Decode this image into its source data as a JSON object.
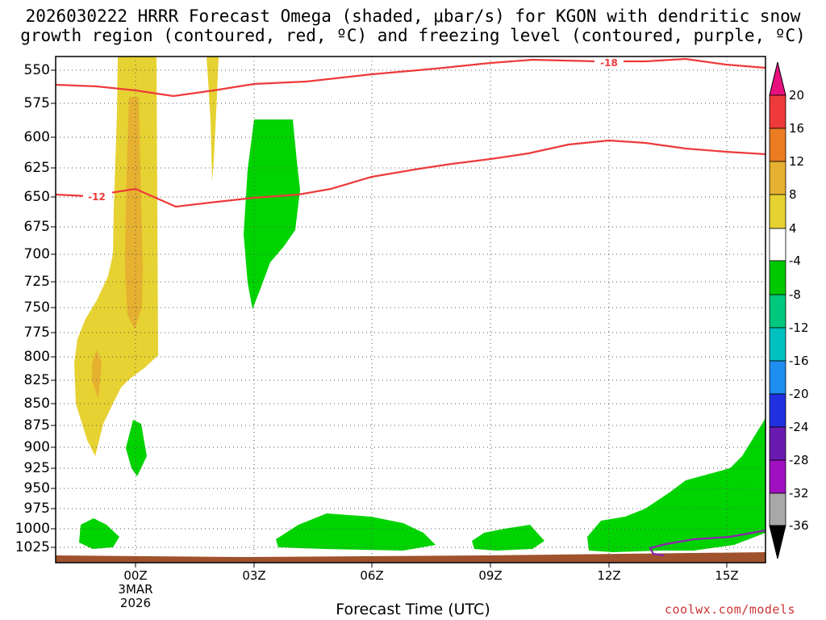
{
  "title_line1": "2026030222 HRRR Forecast Omega (shaded, μbar/s) for KGON with dendritic snow",
  "title_line2": "growth region (contoured, red, ºC) and freezing level (contoured, purple, ºC)",
  "x_axis_label": "Forecast Time (UTC)",
  "credit": "coolwx.com/models",
  "chart_data": {
    "type": "contour",
    "y_axis_levels_mb": [
      "550",
      "575",
      "600",
      "625",
      "650",
      "675",
      "700",
      "725",
      "750",
      "775",
      "800",
      "825",
      "850",
      "875",
      "900",
      "925",
      "950",
      "975",
      "1000",
      "1025"
    ],
    "x_ticks": [
      "00Z",
      "03Z",
      "06Z",
      "09Z",
      "12Z",
      "15Z"
    ],
    "x_tick_hours": [
      0,
      3,
      6,
      9,
      12,
      15
    ],
    "x_date_label": [
      "3MAR",
      "2026"
    ],
    "x_range_hours": [
      -2,
      16
    ],
    "y_range_mb": [
      540,
      1040
    ],
    "contour_labels": [
      "-18",
      "-12"
    ],
    "colorbar_labels": [
      "20",
      "16",
      "12",
      "8",
      "4",
      "-4",
      "-8",
      "-12",
      "-16",
      "-20",
      "-24",
      "-28",
      "-32",
      "-36"
    ],
    "colorbar_colors": [
      "#e8107e",
      "#ee3a3a",
      "#ec7c22",
      "#e6b030",
      "#e6d232",
      "#ffffff",
      "#00c800",
      "#00c87c",
      "#00c0c0",
      "#1e8ef0",
      "#2030e0",
      "#6a1ab0",
      "#a010c0",
      "#a8a8a8",
      "#000000"
    ],
    "colors": {
      "positive_low": "#e6d232",
      "positive_mid": "#e6b030",
      "negative_low": "#00d400",
      "dgz_contour": "#ee3a3a",
      "freezing_contour": "#9020b0",
      "ground": "#a0522d"
    }
  }
}
